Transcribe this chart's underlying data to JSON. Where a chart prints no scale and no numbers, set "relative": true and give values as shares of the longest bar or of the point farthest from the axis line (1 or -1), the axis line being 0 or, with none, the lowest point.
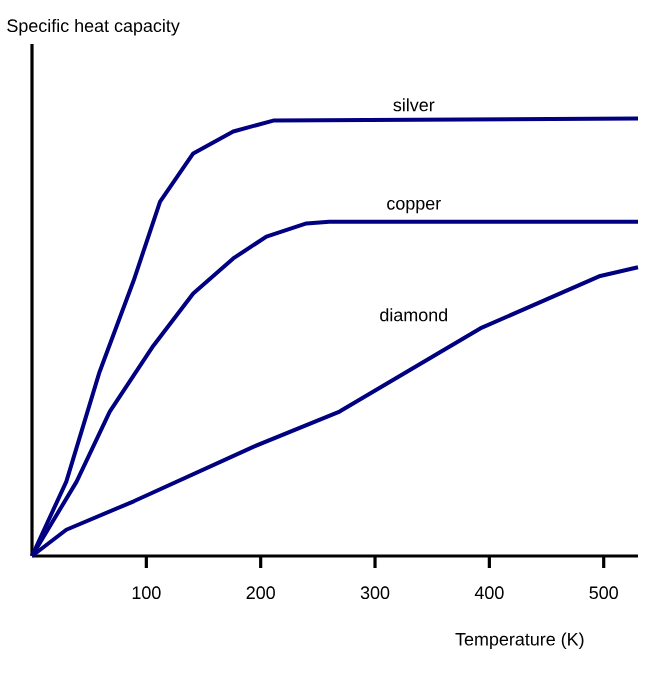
{
  "chart_data": {
    "type": "line",
    "ylabel": "Specific heat capacity",
    "xlabel": "Temperature (K)",
    "relative": true,
    "xlim": [
      0,
      530
    ],
    "xticks": [
      100,
      200,
      300,
      400,
      500
    ],
    "series": [
      {
        "name": "silver",
        "color": "#000080",
        "x": [
          0,
          30,
          59,
          89,
          112,
          141,
          176,
          211,
          530
        ],
        "values": [
          0,
          0.17,
          0.42,
          0.63,
          0.81,
          0.92,
          0.97,
          0.995,
          1
        ]
      },
      {
        "name": "copper",
        "color": "#000080",
        "x": [
          0,
          39,
          68,
          106,
          141,
          176,
          205,
          240,
          260,
          530
        ],
        "values": [
          0,
          0.17,
          0.33,
          0.48,
          0.6,
          0.68,
          0.73,
          0.76,
          0.764,
          0.764
        ]
      },
      {
        "name": "diamond",
        "color": "#000080",
        "x": [
          0,
          30,
          89,
          194,
          269,
          392,
          497,
          530
        ],
        "values": [
          0,
          0.06,
          0.125,
          0.25,
          0.33,
          0.52,
          0.64,
          0.66
        ]
      }
    ]
  }
}
